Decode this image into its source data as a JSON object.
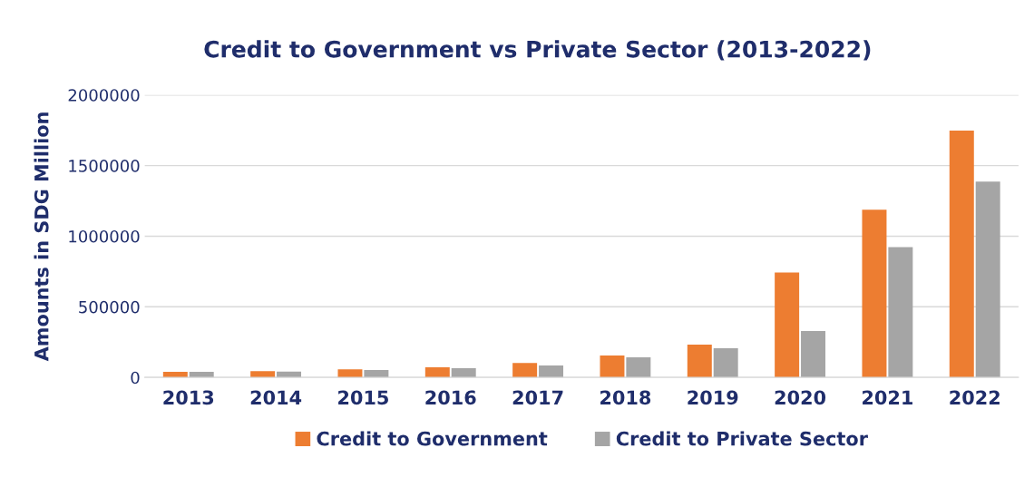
{
  "chart_data": {
    "type": "bar",
    "title": "Credit to Government vs Private Sector (2013-2022)",
    "ylabel": "Amounts in SDG Million",
    "categories": [
      "2013",
      "2014",
      "2015",
      "2016",
      "2017",
      "2018",
      "2019",
      "2020",
      "2021",
      "2022"
    ],
    "series": [
      {
        "name": "Credit to Government",
        "color": "#ed7d31",
        "values": [
          39000,
          45000,
          58000,
          71000,
          103000,
          155000,
          232000,
          742000,
          1187000,
          1748000
        ]
      },
      {
        "name": "Credit to Private Sector",
        "color": "#a5a5a5",
        "values": [
          39000,
          42000,
          52000,
          65000,
          84000,
          142000,
          206000,
          329000,
          922000,
          1387000
        ]
      }
    ],
    "ylim": [
      0,
      2000000
    ],
    "yticks": [
      0,
      500000,
      1000000,
      1500000,
      2000000
    ],
    "grid": "y",
    "legend": "bottom"
  }
}
